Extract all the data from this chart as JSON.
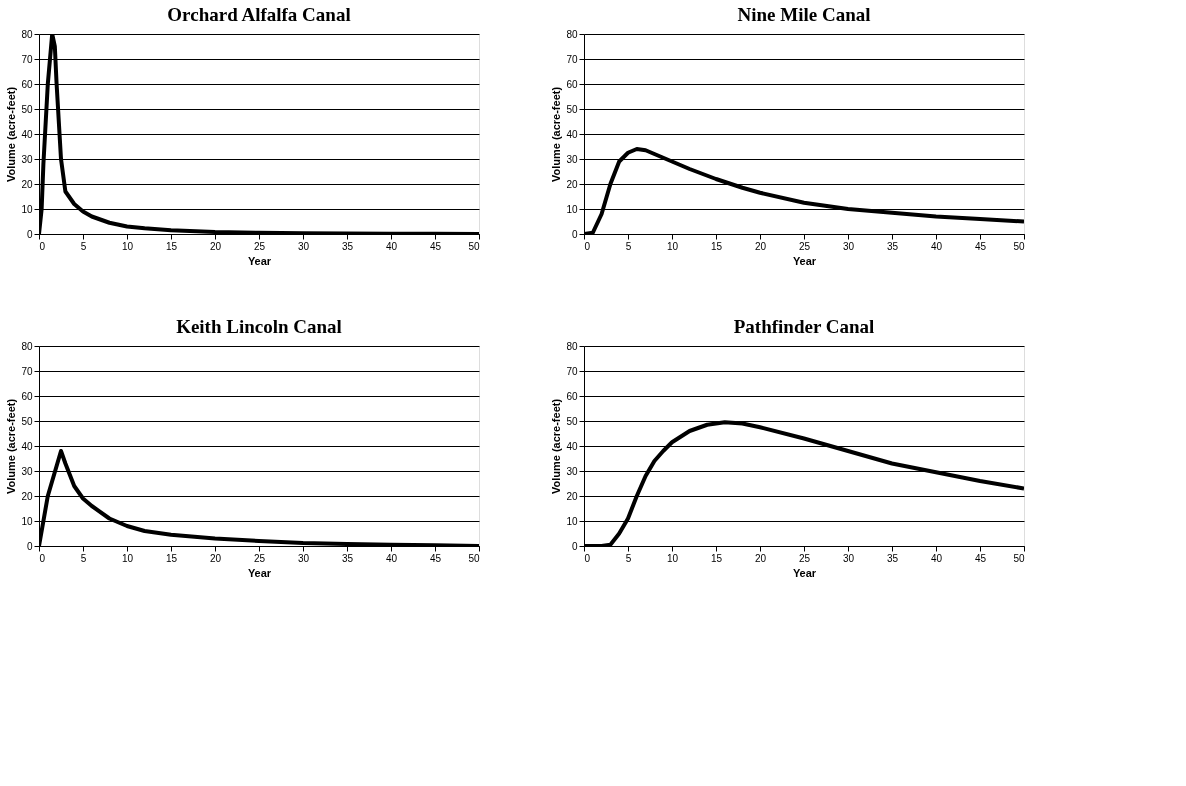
{
  "chart_data": [
    {
      "type": "line",
      "title": "Orchard Alfalfa Canal",
      "xlabel": "Year",
      "ylabel": "Volume (acre-feet)",
      "xlim": [
        0,
        50
      ],
      "ylim": [
        0,
        80
      ],
      "xticks": [
        0,
        5,
        10,
        15,
        20,
        25,
        30,
        35,
        40,
        45,
        50
      ],
      "yticks": [
        0,
        10,
        20,
        30,
        40,
        50,
        60,
        70,
        80
      ],
      "grid": "y",
      "x": [
        0,
        0.3,
        0.5,
        1,
        1.5,
        1.8,
        2,
        2.5,
        3,
        4,
        5,
        6,
        8,
        10,
        12,
        15,
        20,
        25,
        30,
        35,
        40,
        45,
        50
      ],
      "series": [
        {
          "color": "#000000",
          "values": [
            0,
            10,
            28,
            60,
            80,
            75,
            60,
            30,
            17,
            12,
            9,
            7,
            4.5,
            3,
            2.3,
            1.5,
            0.8,
            0.5,
            0.3,
            0.2,
            0.1,
            0.1,
            0
          ]
        }
      ]
    },
    {
      "type": "line",
      "title": "Nine Mile Canal",
      "xlabel": "Year",
      "ylabel": "Volume (acre-feet)",
      "xlim": [
        0,
        50
      ],
      "ylim": [
        0,
        80
      ],
      "xticks": [
        0,
        5,
        10,
        15,
        20,
        25,
        30,
        35,
        40,
        45,
        50
      ],
      "yticks": [
        0,
        10,
        20,
        30,
        40,
        50,
        60,
        70,
        80
      ],
      "grid": "y",
      "x": [
        0,
        1,
        2,
        3,
        4,
        5,
        6,
        7,
        8,
        9,
        10,
        12,
        15,
        18,
        20,
        25,
        30,
        35,
        40,
        45,
        50
      ],
      "series": [
        {
          "color": "#000000",
          "values": [
            0,
            0.5,
            8,
            20,
            29,
            32.5,
            34,
            33.5,
            32,
            30.5,
            29,
            26,
            22,
            18.5,
            16.5,
            12.5,
            10,
            8.5,
            7,
            6,
            5
          ]
        }
      ]
    },
    {
      "type": "line",
      "title": "Keith Lincoln Canal",
      "xlabel": "Year",
      "ylabel": "Volume (acre-feet)",
      "xlim": [
        0,
        50
      ],
      "ylim": [
        0,
        80
      ],
      "xticks": [
        0,
        5,
        10,
        15,
        20,
        25,
        30,
        35,
        40,
        45,
        50
      ],
      "yticks": [
        0,
        10,
        20,
        30,
        40,
        50,
        60,
        70,
        80
      ],
      "grid": "y",
      "x": [
        0,
        1,
        2.5,
        3,
        4,
        5,
        6,
        8,
        10,
        12,
        15,
        20,
        25,
        30,
        35,
        40,
        45,
        50
      ],
      "series": [
        {
          "color": "#000000",
          "values": [
            0,
            20,
            38,
            33,
            24,
            19,
            16,
            11,
            8,
            6,
            4.5,
            3,
            2,
            1.2,
            0.8,
            0.5,
            0.3,
            0
          ]
        }
      ]
    },
    {
      "type": "line",
      "title": "Pathfinder Canal",
      "xlabel": "Year",
      "ylabel": "Volume (acre-feet)",
      "xlim": [
        0,
        50
      ],
      "ylim": [
        0,
        80
      ],
      "xticks": [
        0,
        5,
        10,
        15,
        20,
        25,
        30,
        35,
        40,
        45,
        50
      ],
      "yticks": [
        0,
        10,
        20,
        30,
        40,
        50,
        60,
        70,
        80
      ],
      "grid": "y",
      "x": [
        0,
        2,
        3,
        4,
        5,
        6,
        7,
        8,
        9,
        10,
        12,
        14,
        16,
        18,
        20,
        25,
        30,
        35,
        40,
        45,
        50
      ],
      "series": [
        {
          "color": "#000000",
          "values": [
            0,
            0,
            0.5,
            5,
            11,
            20,
            28,
            34,
            38,
            41.5,
            46,
            48.5,
            49.5,
            49,
            47.5,
            43,
            38,
            33,
            29.5,
            26,
            23
          ]
        }
      ]
    }
  ]
}
